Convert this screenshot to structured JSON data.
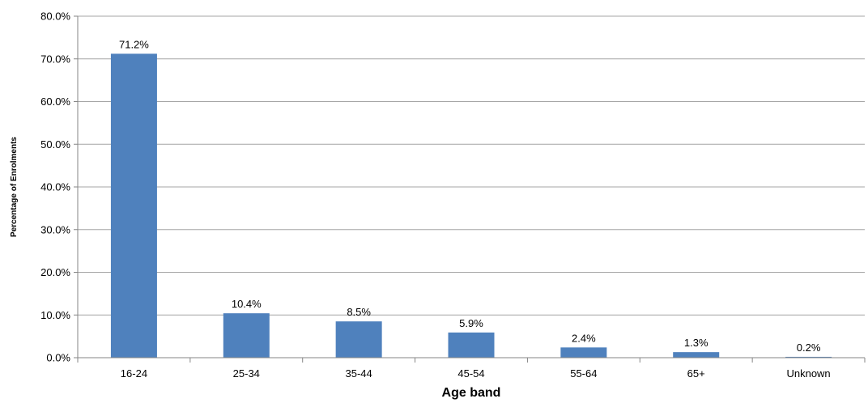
{
  "chart_data": {
    "type": "bar",
    "categories": [
      "16-24",
      "25-34",
      "35-44",
      "45-54",
      "55-64",
      "65+",
      "Unknown"
    ],
    "values": [
      71.2,
      10.4,
      8.5,
      5.9,
      2.4,
      1.3,
      0.2
    ],
    "data_labels": [
      "71.2%",
      "10.4%",
      "8.5%",
      "5.9%",
      "2.4%",
      "1.3%",
      "0.2%"
    ],
    "xlabel": "Age band",
    "ylabel": "Percentage of Enrolments",
    "ylim": [
      0,
      80
    ],
    "y_ticks": [
      "0.0%",
      "10.0%",
      "20.0%",
      "30.0%",
      "40.0%",
      "50.0%",
      "60.0%",
      "70.0%",
      "80.0%"
    ],
    "grid": true,
    "legend": "none",
    "bar_color": "#4f81bd"
  }
}
